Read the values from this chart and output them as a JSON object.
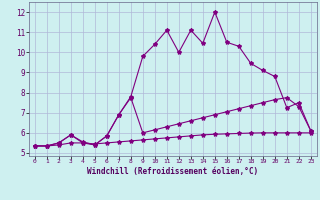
{
  "xlabel": "Windchill (Refroidissement éolien,°C)",
  "bg_color": "#cef0f0",
  "line_color": "#800080",
  "grid_color": "#b0b8d8",
  "x_ticks": [
    0,
    1,
    2,
    3,
    4,
    5,
    6,
    7,
    8,
    9,
    10,
    11,
    12,
    13,
    14,
    15,
    16,
    17,
    18,
    19,
    20,
    21,
    22,
    23
  ],
  "y_ticks": [
    5,
    6,
    7,
    8,
    9,
    10,
    11,
    12
  ],
  "ylim": [
    4.85,
    12.5
  ],
  "xlim": [
    -0.5,
    23.5
  ],
  "series1_x": [
    0,
    1,
    2,
    3,
    4,
    5,
    6,
    7,
    8,
    9,
    10,
    11,
    12,
    13,
    14,
    15,
    16,
    17,
    18,
    19,
    20,
    21,
    22,
    23
  ],
  "series1_y": [
    5.35,
    5.35,
    5.5,
    5.9,
    5.5,
    5.4,
    5.85,
    6.9,
    7.8,
    9.8,
    10.4,
    11.1,
    10.0,
    11.1,
    10.45,
    12.0,
    10.5,
    10.3,
    9.45,
    9.1,
    8.8,
    7.25,
    7.5,
    6.1
  ],
  "series2_x": [
    0,
    1,
    2,
    3,
    4,
    5,
    6,
    7,
    8,
    9,
    10,
    11,
    12,
    13,
    14,
    15,
    16,
    17,
    18,
    19,
    20,
    21,
    22,
    23
  ],
  "series2_y": [
    5.35,
    5.35,
    5.5,
    5.9,
    5.55,
    5.4,
    5.85,
    6.9,
    7.75,
    6.0,
    6.15,
    6.3,
    6.45,
    6.6,
    6.75,
    6.9,
    7.05,
    7.2,
    7.35,
    7.5,
    7.65,
    7.75,
    7.3,
    6.1
  ],
  "series3_x": [
    0,
    1,
    2,
    3,
    4,
    5,
    6,
    7,
    8,
    9,
    10,
    11,
    12,
    13,
    14,
    15,
    16,
    17,
    18,
    19,
    20,
    21,
    22,
    23
  ],
  "series3_y": [
    5.35,
    5.35,
    5.4,
    5.5,
    5.5,
    5.45,
    5.5,
    5.55,
    5.6,
    5.65,
    5.7,
    5.75,
    5.8,
    5.85,
    5.9,
    5.93,
    5.95,
    5.97,
    5.99,
    6.0,
    6.0,
    6.0,
    6.0,
    6.0
  ]
}
